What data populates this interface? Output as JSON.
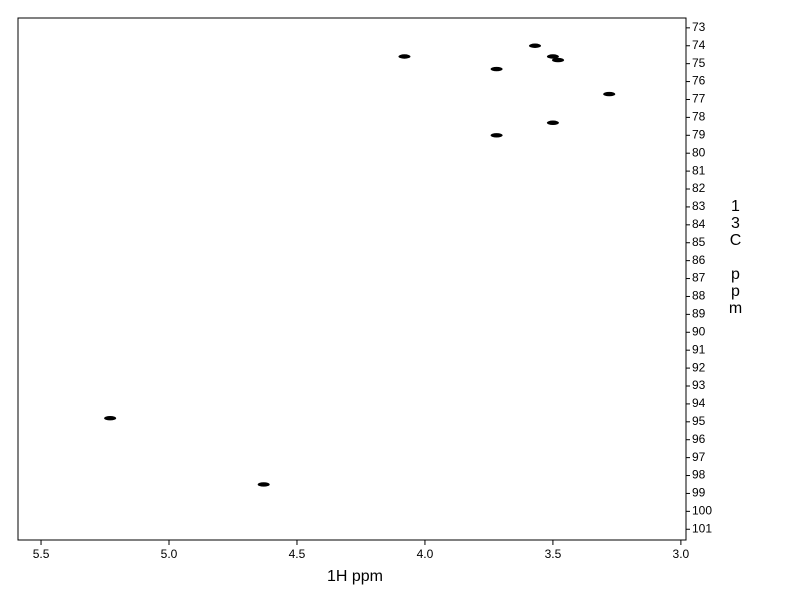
{
  "chart_data": {
    "type": "scatter",
    "x_label": "1H ppm",
    "y_label": "13C ppm",
    "x": [
      5.23,
      4.63,
      4.08,
      3.72,
      3.72,
      3.57,
      3.5,
      3.48,
      3.5,
      3.28
    ],
    "values": [
      94.8,
      98.5,
      74.6,
      75.3,
      79.0,
      74.0,
      74.6,
      74.8,
      78.3,
      76.7
    ],
    "color": "#000000",
    "xlim": [
      5.59,
      2.98
    ],
    "xticks": [
      5.5,
      {
        "value": 5,
        "label": "5.0"
      },
      4.5,
      {
        "value": 4,
        "label": "4.0"
      },
      3.5,
      {
        "value": 3,
        "label": "3.0"
      }
    ],
    "ylim": [
      72.45,
      101.6
    ],
    "yticks": [
      73,
      74,
      75,
      76,
      77,
      78,
      79,
      80,
      81,
      82,
      83,
      84,
      85,
      86,
      87,
      88,
      89,
      90,
      91,
      92,
      93,
      94,
      95,
      96,
      97,
      98,
      99,
      100,
      101
    ],
    "grid": false
  }
}
